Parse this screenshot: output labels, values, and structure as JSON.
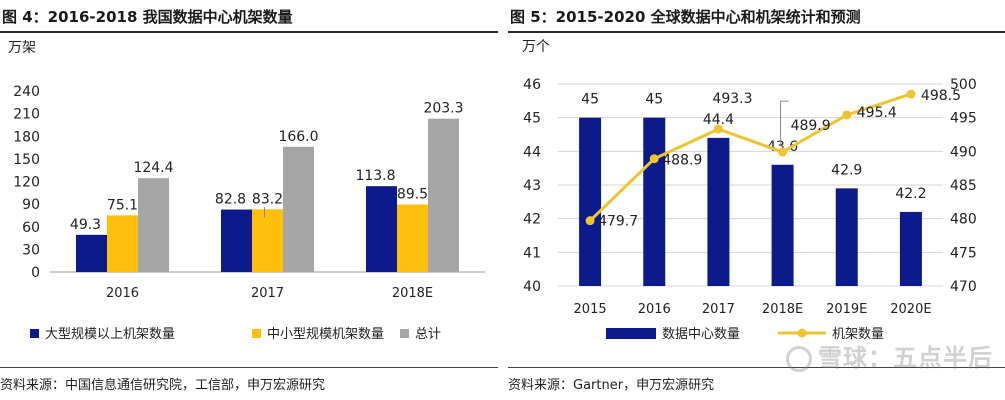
{
  "left": {
    "title": "图 4：2016-2018 我国数据中心机架数量",
    "source": "资料来源：中国信息通信研究院，工信部，申万宏源研究"
  },
  "right": {
    "title": "图 5：2015-2020 全球数据中心和机架统计和预测",
    "source": "资料来源：Gartner，申万宏源研究"
  },
  "watermark": "雪球：五点半后",
  "colors": {
    "navy": "#0d1a8c",
    "gold": "#fec00d",
    "gray": "#a5a5a5",
    "line": "#f0c330"
  },
  "chart_data": [
    {
      "type": "bar",
      "title": "",
      "unit_label": "万架",
      "categories": [
        "2016",
        "2017",
        "2018E"
      ],
      "ylim": [
        0,
        240
      ],
      "yticks": [
        0,
        30,
        60,
        90,
        120,
        150,
        180,
        210,
        240
      ],
      "legend_position": "bottom",
      "series": [
        {
          "name": "大型规模以上机架数量",
          "color": "#0d1a8c",
          "values": [
            49.3,
            82.8,
            113.8
          ],
          "labels": [
            "49.3",
            "82.8",
            "113.8"
          ]
        },
        {
          "name": "中小型规模机架数量",
          "color": "#fec00d",
          "values": [
            75.1,
            83.2,
            89.5
          ],
          "labels": [
            "75.1",
            "83.2",
            "89.5"
          ]
        },
        {
          "name": "总计",
          "color": "#a5a5a5",
          "values": [
            124.4,
            166.0,
            203.3
          ],
          "labels": [
            "124.4",
            "166.0",
            "203.3"
          ]
        }
      ]
    },
    {
      "type": "bar+line",
      "title": "",
      "unit_label": "万个",
      "categories": [
        "2015",
        "2016",
        "2017",
        "2018E",
        "2019E",
        "2020E"
      ],
      "ylim_left": [
        40,
        46
      ],
      "yticks_left": [
        40,
        41,
        42,
        43,
        44,
        45,
        46
      ],
      "ylim_right": [
        470,
        500
      ],
      "yticks_right": [
        470,
        475,
        480,
        485,
        490,
        495,
        500
      ],
      "legend_position": "bottom",
      "series": [
        {
          "name": "数据中心数量",
          "type": "bar",
          "axis": "left",
          "color": "#0d1a8c",
          "values": [
            45,
            45,
            44.4,
            43.6,
            42.9,
            42.2
          ],
          "labels": [
            "45",
            "45",
            "44.4",
            "43.6",
            "42.9",
            "42.2"
          ]
        },
        {
          "name": "机架数量",
          "type": "line",
          "axis": "right",
          "color": "#f0c330",
          "values": [
            479.7,
            488.9,
            493.3,
            489.9,
            495.4,
            498.5
          ],
          "labels": [
            "479.7",
            "488.9",
            "493.3",
            "489.9",
            "495.4",
            "498.5"
          ]
        }
      ]
    }
  ]
}
